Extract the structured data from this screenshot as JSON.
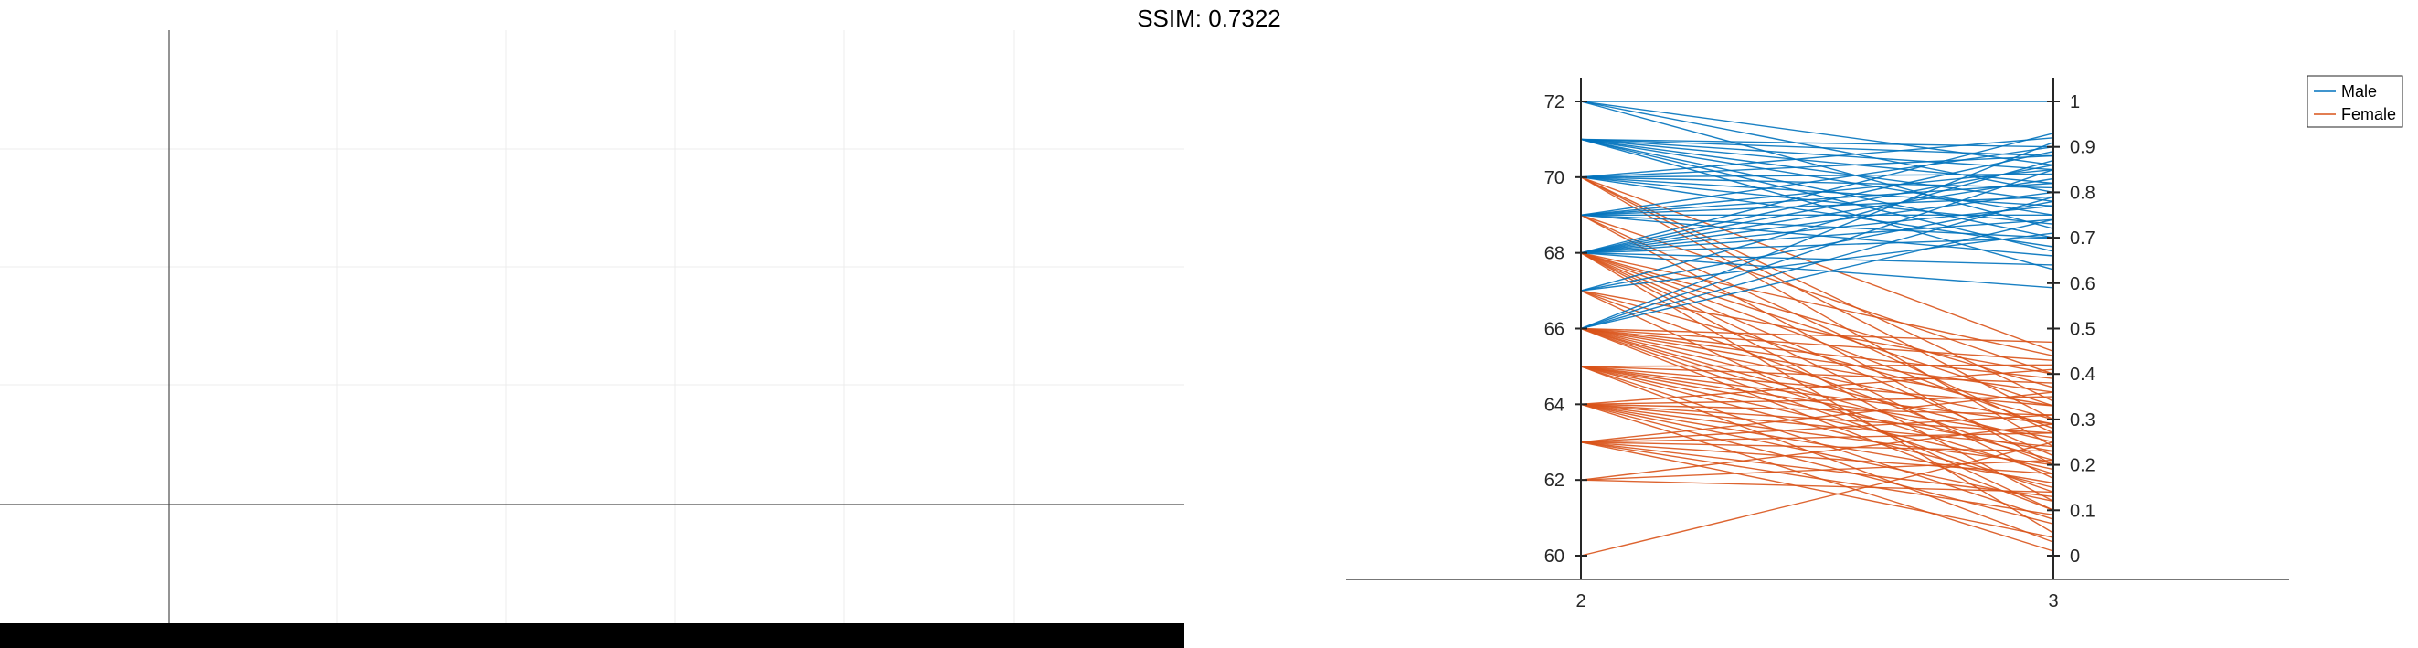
{
  "figure": {
    "title": "SSIM: 0.7322"
  },
  "chart_data": [
    {
      "type": "line",
      "panel": "left",
      "description": "empty axes",
      "xlim": [
        0,
        6
      ],
      "ylim": [
        0,
        4
      ],
      "grid": true
    },
    {
      "type": "line",
      "panel": "right",
      "chart_kind": "parallel-coordinates",
      "x": [
        2,
        3
      ],
      "x_tick_labels": [
        "2",
        "3"
      ],
      "left_axis": {
        "ylim": [
          60,
          72
        ],
        "ticks": [
          "60",
          "62",
          "64",
          "66",
          "68",
          "70",
          "72"
        ]
      },
      "right_axis": {
        "ylim": [
          0,
          1
        ],
        "ticks": [
          "0",
          "0.1",
          "0.2",
          "0.3",
          "0.4",
          "0.5",
          "0.6",
          "0.7",
          "0.8",
          "0.9",
          "1"
        ]
      },
      "legend": {
        "position": "top-right",
        "entries": [
          "Male",
          "Female"
        ]
      },
      "colors": {
        "Male": "#0072BD",
        "Female": "#D95319"
      },
      "series": [
        {
          "name": "Male",
          "pairs": [
            [
              72,
              1.0
            ],
            [
              72,
              0.86
            ],
            [
              72,
              0.8
            ],
            [
              72,
              0.72
            ],
            [
              71,
              0.9
            ],
            [
              71,
              0.88
            ],
            [
              71,
              0.85
            ],
            [
              71,
              0.82
            ],
            [
              71,
              0.78
            ],
            [
              71,
              0.75
            ],
            [
              71,
              0.7
            ],
            [
              71,
              0.67
            ],
            [
              71,
              0.63
            ],
            [
              70,
              0.92
            ],
            [
              70,
              0.88
            ],
            [
              70,
              0.84
            ],
            [
              70,
              0.81
            ],
            [
              70,
              0.77
            ],
            [
              70,
              0.73
            ],
            [
              70,
              0.68
            ],
            [
              69,
              0.9
            ],
            [
              69,
              0.85
            ],
            [
              69,
              0.82
            ],
            [
              69,
              0.79
            ],
            [
              69,
              0.75
            ],
            [
              69,
              0.7
            ],
            [
              69,
              0.66
            ],
            [
              68,
              0.93
            ],
            [
              68,
              0.89
            ],
            [
              68,
              0.86
            ],
            [
              68,
              0.83
            ],
            [
              68,
              0.8
            ],
            [
              68,
              0.77
            ],
            [
              68,
              0.74
            ],
            [
              68,
              0.7
            ],
            [
              68,
              0.64
            ],
            [
              68,
              0.59
            ],
            [
              67,
              0.87
            ],
            [
              67,
              0.78
            ],
            [
              67,
              0.71
            ],
            [
              66,
              0.91
            ],
            [
              66,
              0.85
            ],
            [
              66,
              0.79
            ],
            [
              66,
              0.74
            ]
          ]
        },
        {
          "name": "Female",
          "pairs": [
            [
              70,
              0.45
            ],
            [
              70,
              0.34
            ],
            [
              70,
              0.3
            ],
            [
              70,
              0.24
            ],
            [
              69,
              0.4
            ],
            [
              69,
              0.27
            ],
            [
              69,
              0.2
            ],
            [
              68,
              0.44
            ],
            [
              68,
              0.37
            ],
            [
              68,
              0.33
            ],
            [
              68,
              0.28
            ],
            [
              68,
              0.22
            ],
            [
              68,
              0.17
            ],
            [
              68,
              0.12
            ],
            [
              68,
              0.05
            ],
            [
              67,
              0.4
            ],
            [
              67,
              0.3
            ],
            [
              67,
              0.2
            ],
            [
              67,
              0.1
            ],
            [
              66,
              0.47
            ],
            [
              66,
              0.43
            ],
            [
              66,
              0.39
            ],
            [
              66,
              0.36
            ],
            [
              66,
              0.33
            ],
            [
              66,
              0.29
            ],
            [
              66,
              0.25
            ],
            [
              66,
              0.21
            ],
            [
              66,
              0.18
            ],
            [
              66,
              0.14
            ],
            [
              66,
              0.1
            ],
            [
              65,
              0.42
            ],
            [
              65,
              0.38
            ],
            [
              65,
              0.33
            ],
            [
              65,
              0.29
            ],
            [
              65,
              0.26
            ],
            [
              65,
              0.23
            ],
            [
              65,
              0.19
            ],
            [
              65,
              0.15
            ],
            [
              65,
              0.08
            ],
            [
              65,
              0.03
            ],
            [
              64,
              0.41
            ],
            [
              64,
              0.35
            ],
            [
              64,
              0.31
            ],
            [
              64,
              0.27
            ],
            [
              64,
              0.24
            ],
            [
              64,
              0.2
            ],
            [
              64,
              0.16
            ],
            [
              64,
              0.12
            ],
            [
              64,
              0.07
            ],
            [
              64,
              0.01
            ],
            [
              63,
              0.36
            ],
            [
              63,
              0.31
            ],
            [
              63,
              0.27
            ],
            [
              63,
              0.23
            ],
            [
              63,
              0.18
            ],
            [
              63,
              0.13
            ],
            [
              63,
              0.09
            ],
            [
              63,
              0.04
            ],
            [
              62,
              0.29
            ],
            [
              62,
              0.21
            ],
            [
              62,
              0.14
            ],
            [
              60,
              0.25
            ]
          ]
        }
      ]
    }
  ]
}
